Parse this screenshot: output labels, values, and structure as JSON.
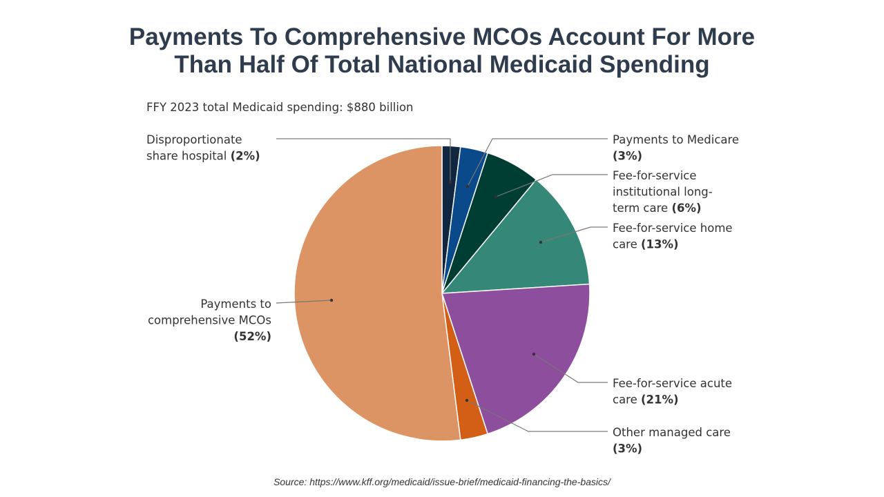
{
  "title_line1": "Payments To Comprehensive MCOs Account For More",
  "title_line2": "Than Half Of Total National Medicaid Spending",
  "subtitle": "FFY 2023 total Medicaid spending: $880 billion",
  "source": "Source: https://www.kff.org/medicaid/issue-brief/medicaid-financing-the-basics/",
  "chart_data": {
    "type": "pie",
    "title": "Payments To Comprehensive MCOs Account For More Than Half Of Total National Medicaid Spending",
    "subtitle": "FFY 2023 total Medicaid spending: $880 billion",
    "slices": [
      {
        "label_lines": [
          "Disproportionate",
          "share hospital "
        ],
        "pct_label": "(2%)",
        "value": 2,
        "color": "#0f2740"
      },
      {
        "label_lines": [
          "Payments to Medicare"
        ],
        "pct_label": "(3%)",
        "value": 3,
        "color": "#0a4a8a"
      },
      {
        "label_lines": [
          "Fee-for-service",
          "institutional long-",
          "term care "
        ],
        "pct_label": "(6%)",
        "value": 6,
        "color": "#003e33"
      },
      {
        "label_lines": [
          "Fee-for-service home",
          "care "
        ],
        "pct_label": "(13%)",
        "value": 13,
        "color": "#358877"
      },
      {
        "label_lines": [
          "Fee-for-service acute",
          "care "
        ],
        "pct_label": "(21%)",
        "value": 21,
        "color": "#8e4e9e"
      },
      {
        "label_lines": [
          "Other managed care"
        ],
        "pct_label": "(3%)",
        "value": 3,
        "color": "#d35f17"
      },
      {
        "label_lines": [
          "Payments to",
          "comprehensive MCOs"
        ],
        "pct_label": "(52%)",
        "value": 52,
        "color": "#dd9465"
      }
    ],
    "legend": "none"
  }
}
